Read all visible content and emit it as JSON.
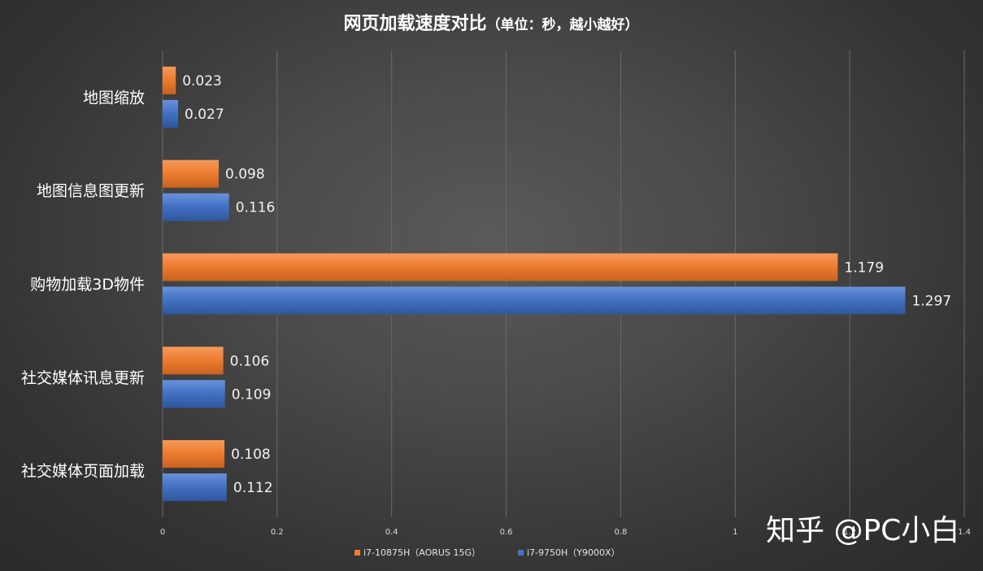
{
  "colors": {
    "series_1": "#ed7d31",
    "series_2": "#4472c4",
    "grid": "#6a6a6a",
    "text": "#ffffff"
  },
  "watermark": "知乎 @PC小白",
  "chart_data": {
    "type": "bar",
    "orientation": "horizontal",
    "title": "网页加载速度对比",
    "subtitle": "（单位：秒，越小越好）",
    "categories": [
      "地图缩放",
      "地图信息图更新",
      "购物加载3D物件",
      "社交媒体讯息更新",
      "社交媒体页面加载"
    ],
    "series": [
      {
        "name": "i7-10875H（AORUS 15G）",
        "color": "#ed7d31",
        "values": [
          0.023,
          0.098,
          1.179,
          0.106,
          0.108
        ],
        "labels": [
          "0.023",
          "0.098",
          "1.179",
          "0.106",
          "0.108"
        ]
      },
      {
        "name": "i7-9750H（Y9000X）",
        "color": "#4472c4",
        "values": [
          0.027,
          0.116,
          1.297,
          0.109,
          0.112
        ],
        "labels": [
          "0.027",
          "0.116",
          "1.297",
          "0.109",
          "0.112"
        ]
      }
    ],
    "xlim": [
      0,
      1.4
    ],
    "xticks": [
      "0",
      "0.2",
      "0.4",
      "0.6",
      "0.8",
      "1",
      "1.2",
      "1.4"
    ],
    "grid": true,
    "legend_position": "bottom"
  }
}
